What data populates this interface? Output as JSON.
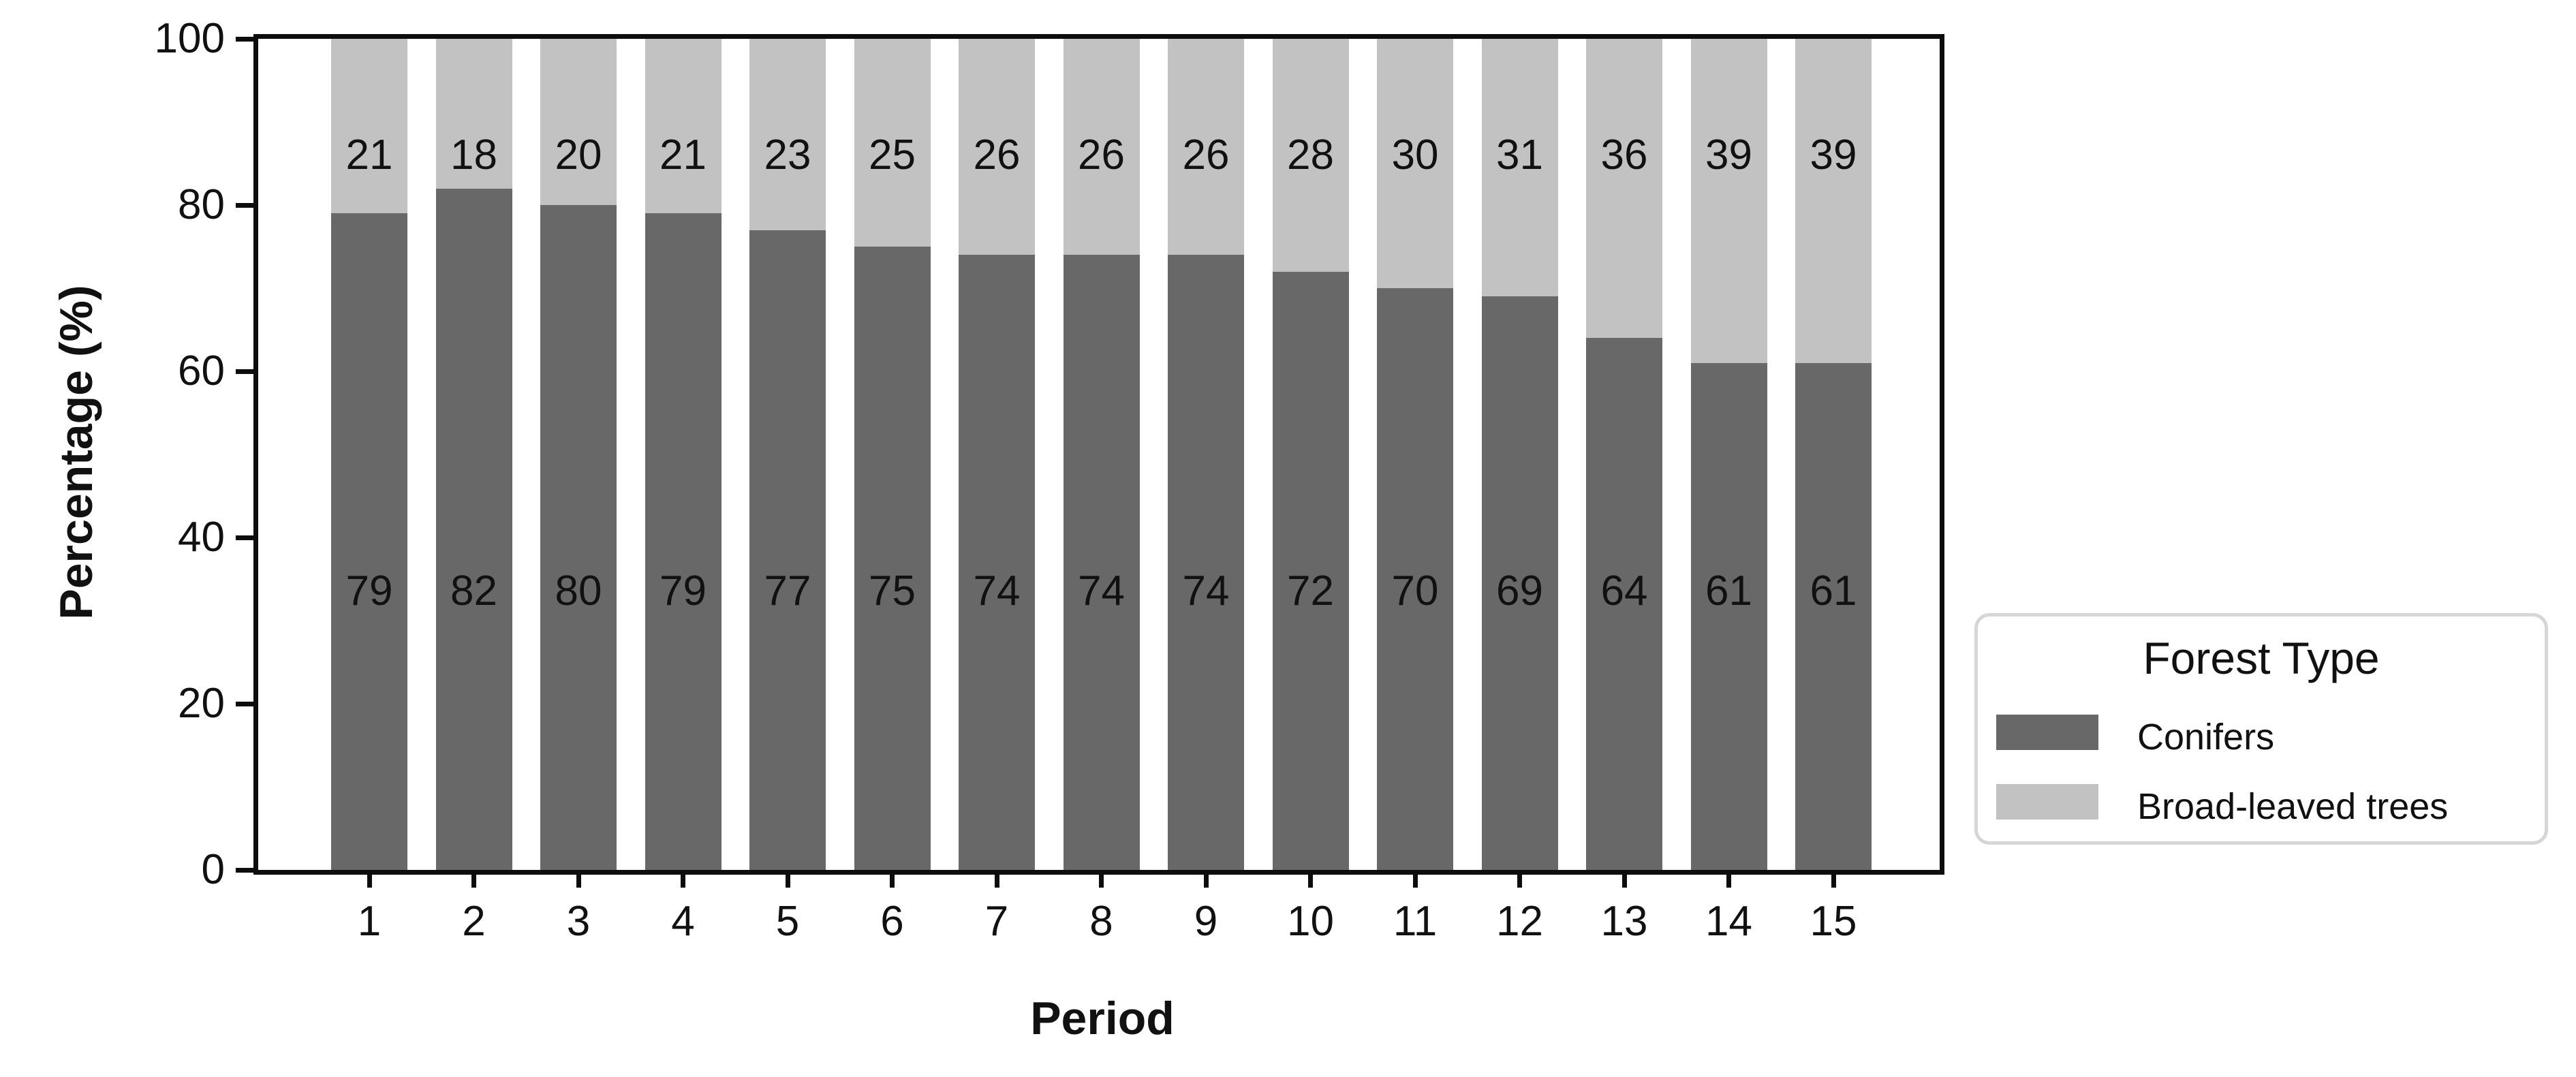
{
  "figure": {
    "x_axis_title": "Period",
    "y_axis_title": "Percentage (%)"
  },
  "legend": {
    "title": "Forest Type",
    "items": [
      {
        "label": "Conifers",
        "color": "#686868"
      },
      {
        "label": "Broad-leaved trees",
        "color": "#c2c2c2"
      }
    ]
  },
  "chart_data": {
    "type": "bar",
    "stacked": true,
    "orientation": "vertical",
    "title": "",
    "xlabel": "Period",
    "ylabel": "Percentage (%)",
    "categories": [
      "1",
      "2",
      "3",
      "4",
      "5",
      "6",
      "7",
      "8",
      "9",
      "10",
      "11",
      "12",
      "13",
      "14",
      "15"
    ],
    "series": [
      {
        "name": "Conifers",
        "color": "#686868",
        "values": [
          79,
          82,
          80,
          79,
          77,
          75,
          74,
          74,
          74,
          72,
          70,
          69,
          64,
          61,
          61
        ]
      },
      {
        "name": "Broad-leaved trees",
        "color": "#c2c2c2",
        "values": [
          21,
          18,
          20,
          21,
          23,
          25,
          26,
          26,
          26,
          28,
          30,
          31,
          36,
          39,
          39
        ]
      }
    ],
    "ylim": [
      0,
      100
    ],
    "yticks": [
      0,
      20,
      40,
      60,
      80,
      100
    ],
    "bar_value_labels": true,
    "grid": false,
    "legend_title": "Forest Type",
    "legend_position": "right",
    "colors": {
      "conifers": "#686868",
      "broadleaved": "#c2c2c2",
      "axis": "#0d0d0d",
      "legend_border": "#d6d6d6"
    }
  }
}
